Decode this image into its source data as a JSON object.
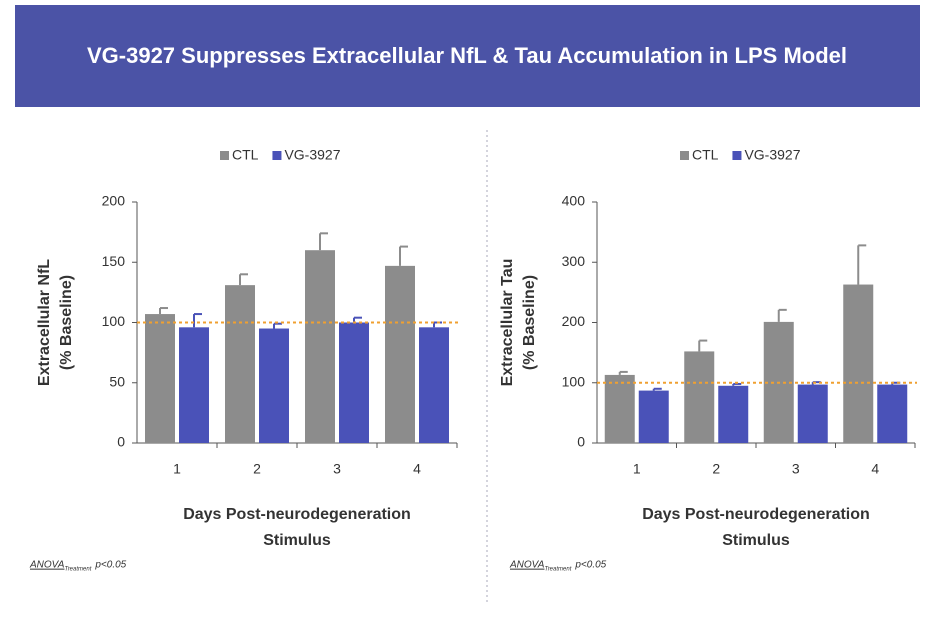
{
  "title": "VG-3927 Suppresses Extracellular NfL & Tau Accumulation in LPS Model",
  "chart_data": [
    {
      "type": "bar",
      "y_label": [
        "Extracellular NfL",
        "(% Baseline)"
      ],
      "x_label": [
        "Days Post-neurodegeneration",
        "Stimulus"
      ],
      "categories": [
        "1",
        "2",
        "3",
        "4"
      ],
      "series": [
        {
          "name": "CTL",
          "color": "#8c8c8c",
          "values": [
            107,
            131,
            160,
            147
          ],
          "errors": [
            5,
            9,
            14,
            16
          ]
        },
        {
          "name": "VG-3927",
          "color": "#4a52b8",
          "values": [
            96,
            95,
            100,
            96
          ],
          "errors": [
            11,
            4,
            4,
            4
          ]
        }
      ],
      "ylim": [
        0,
        200
      ],
      "yticks": [
        0,
        50,
        100,
        150,
        200
      ],
      "reference_line": {
        "value": 100,
        "color": "#f0a030"
      },
      "annotation": [
        "ANOVA",
        "Treatment",
        "p<0.05"
      ]
    },
    {
      "type": "bar",
      "y_label": [
        "Extracellular Tau",
        "(% Baseline)"
      ],
      "x_label": [
        "Days Post-neurodegeneration",
        "Stimulus"
      ],
      "categories": [
        "1",
        "2",
        "3",
        "4"
      ],
      "series": [
        {
          "name": "CTL",
          "color": "#8c8c8c",
          "values": [
            113,
            152,
            201,
            263
          ],
          "errors": [
            5,
            18,
            20,
            65
          ]
        },
        {
          "name": "VG-3927",
          "color": "#4a52b8",
          "values": [
            87,
            95,
            97,
            97
          ],
          "errors": [
            3,
            3,
            4,
            3
          ]
        }
      ],
      "ylim": [
        0,
        400
      ],
      "yticks": [
        0,
        100,
        200,
        300,
        400
      ],
      "reference_line": {
        "value": 100,
        "color": "#f0a030"
      },
      "annotation": [
        "ANOVA",
        "Treatment",
        "p<0.05"
      ]
    }
  ]
}
